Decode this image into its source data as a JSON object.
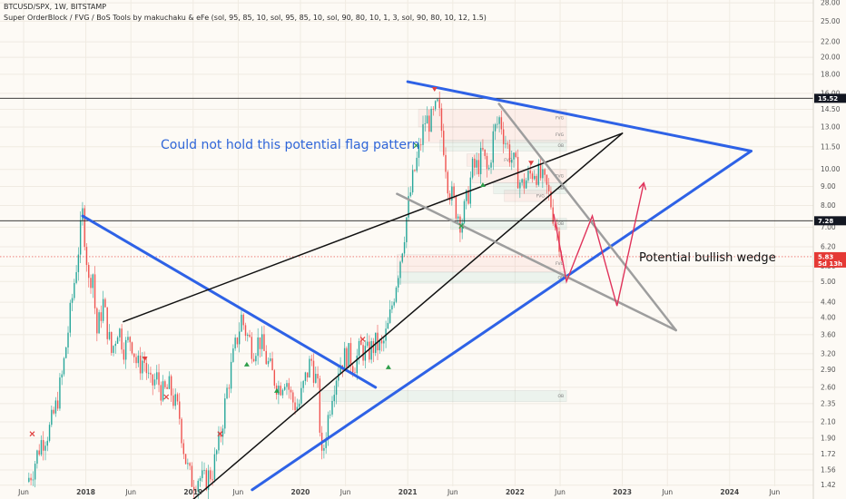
{
  "header": {
    "symbol_line": "BTCUSD/SPX, 1W, BITSTAMP",
    "indicator_line": "Super OrderBlock / FVG / BoS Tools by makuchaku & eFe (sol, 95, 85, 10, sol, 95, 85, 10, sol, 90, 80, 10, 1, 3, sol, 90, 80, 10, 12, 1.5)"
  },
  "annotations": {
    "flag_text": "Could not hold this potential flag pattern",
    "wedge_text": "Potential bullish wedge"
  },
  "price_labels": [
    {
      "value": "15.52",
      "color": "#131722"
    },
    {
      "value": "7.28",
      "color": "#131722"
    },
    {
      "value": "5.83",
      "color": "#e53935",
      "sub": "5d 13h"
    }
  ],
  "zone_labels": [
    "FVG",
    "OB"
  ],
  "colors": {
    "up": "#26a69a",
    "down": "#ef5350",
    "trend_blue": "#2e62e6",
    "trend_black": "#111111",
    "wedge_gray": "#9e9e9e",
    "projection": "#e0335b"
  },
  "chart_data": {
    "type": "candlestick",
    "y_scale": "log",
    "ylim": [
      1.41,
      28.5
    ],
    "y_ticks": [
      1.42,
      1.56,
      1.72,
      1.9,
      2.1,
      2.35,
      2.6,
      2.9,
      3.2,
      3.6,
      4.0,
      4.4,
      5.0,
      5.5,
      6.2,
      7.0,
      8.0,
      9.0,
      10.0,
      11.5,
      13.0,
      14.5,
      16.0,
      18.0,
      20.0,
      22.0,
      25.0,
      28.0
    ],
    "x_ticks": [
      {
        "label": "Jun",
        "t": 2017.42,
        "bold": false
      },
      {
        "label": "2018",
        "t": 2018.0,
        "bold": true
      },
      {
        "label": "Jun",
        "t": 2018.42,
        "bold": false
      },
      {
        "label": "2019",
        "t": 2019.0,
        "bold": true
      },
      {
        "label": "Jun",
        "t": 2019.42,
        "bold": false
      },
      {
        "label": "2020",
        "t": 2020.0,
        "bold": true
      },
      {
        "label": "Jun",
        "t": 2020.42,
        "bold": false
      },
      {
        "label": "2021",
        "t": 2021.0,
        "bold": true
      },
      {
        "label": "Jun",
        "t": 2021.42,
        "bold": false
      },
      {
        "label": "2022",
        "t": 2022.0,
        "bold": true
      },
      {
        "label": "Jun",
        "t": 2022.42,
        "bold": false
      },
      {
        "label": "2023",
        "t": 2023.0,
        "bold": true
      },
      {
        "label": "Jun",
        "t": 2023.42,
        "bold": false
      },
      {
        "label": "2024",
        "t": 2024.0,
        "bold": true
      },
      {
        "label": "Jun",
        "t": 2024.42,
        "bold": false
      }
    ],
    "x_range": [
      2017.2,
      2024.78
    ],
    "price_path": [
      [
        2017.45,
        1.45
      ],
      [
        2017.5,
        1.55
      ],
      [
        2017.58,
        1.85
      ],
      [
        2017.66,
        2.0
      ],
      [
        2017.72,
        2.3
      ],
      [
        2017.78,
        2.8
      ],
      [
        2017.84,
        3.8
      ],
      [
        2017.9,
        5.2
      ],
      [
        2017.95,
        6.8
      ],
      [
        2017.97,
        7.6
      ],
      [
        2018.0,
        6.2
      ],
      [
        2018.03,
        4.8
      ],
      [
        2018.06,
        5.6
      ],
      [
        2018.1,
        3.6
      ],
      [
        2018.16,
        4.4
      ],
      [
        2018.24,
        3.2
      ],
      [
        2018.3,
        3.8
      ],
      [
        2018.36,
        3.3
      ],
      [
        2018.42,
        3.55
      ],
      [
        2018.48,
        2.95
      ],
      [
        2018.54,
        3.1
      ],
      [
        2018.6,
        2.6
      ],
      [
        2018.66,
        2.75
      ],
      [
        2018.72,
        2.5
      ],
      [
        2018.78,
        2.6
      ],
      [
        2018.82,
        2.4
      ],
      [
        2018.87,
        2.2
      ],
      [
        2018.92,
        1.72
      ],
      [
        2018.96,
        1.52
      ],
      [
        2019.0,
        1.45
      ],
      [
        2019.05,
        1.5
      ],
      [
        2019.1,
        1.45
      ],
      [
        2019.18,
        1.55
      ],
      [
        2019.25,
        1.9
      ],
      [
        2019.32,
        2.6
      ],
      [
        2019.38,
        3.2
      ],
      [
        2019.45,
        4.0
      ],
      [
        2019.5,
        3.6
      ],
      [
        2019.56,
        3.3
      ],
      [
        2019.62,
        3.5
      ],
      [
        2019.68,
        3.1
      ],
      [
        2019.74,
        2.8
      ],
      [
        2019.8,
        2.6
      ],
      [
        2019.86,
        2.8
      ],
      [
        2019.92,
        2.4
      ],
      [
        2019.98,
        2.3
      ],
      [
        2020.04,
        2.7
      ],
      [
        2020.1,
        3.1
      ],
      [
        2020.16,
        2.6
      ],
      [
        2020.2,
        1.65
      ],
      [
        2020.24,
        2.0
      ],
      [
        2020.3,
        2.6
      ],
      [
        2020.36,
        3.0
      ],
      [
        2020.44,
        3.2
      ],
      [
        2020.5,
        3.0
      ],
      [
        2020.56,
        3.3
      ],
      [
        2020.62,
        3.2
      ],
      [
        2020.7,
        3.4
      ],
      [
        2020.76,
        3.3
      ],
      [
        2020.82,
        3.8
      ],
      [
        2020.88,
        4.8
      ],
      [
        2020.94,
        6.0
      ],
      [
        2021.0,
        7.8
      ],
      [
        2021.05,
        9.5
      ],
      [
        2021.1,
        11.0
      ],
      [
        2021.16,
        13.5
      ],
      [
        2021.22,
        13.5
      ],
      [
        2021.28,
        14.8
      ],
      [
        2021.33,
        12.0
      ],
      [
        2021.38,
        9.0
      ],
      [
        2021.44,
        8.0
      ],
      [
        2021.5,
        7.2
      ],
      [
        2021.56,
        8.5
      ],
      [
        2021.6,
        10.0
      ],
      [
        2021.65,
        10.2
      ],
      [
        2021.7,
        11.0
      ],
      [
        2021.75,
        9.6
      ],
      [
        2021.8,
        12.5
      ],
      [
        2021.86,
        13.8
      ],
      [
        2021.9,
        12.2
      ],
      [
        2021.95,
        11.0
      ],
      [
        2022.0,
        10.2
      ],
      [
        2022.06,
        9.0
      ],
      [
        2022.12,
        9.5
      ],
      [
        2022.18,
        10.0
      ],
      [
        2022.24,
        9.5
      ],
      [
        2022.3,
        8.8
      ],
      [
        2022.34,
        8.0
      ],
      [
        2022.38,
        7.0
      ],
      [
        2022.42,
        6.4
      ],
      [
        2022.44,
        5.83
      ]
    ],
    "projection_path": [
      [
        2022.36,
        7.6
      ],
      [
        2022.48,
        5.0
      ],
      [
        2022.72,
        7.5
      ],
      [
        2022.95,
        4.3
      ],
      [
        2023.2,
        9.2
      ]
    ],
    "trendlines": [
      {
        "color": "blue",
        "width": 3,
        "points": [
          [
            2017.97,
            7.5
          ],
          [
            2020.7,
            2.6
          ]
        ]
      },
      {
        "color": "blue",
        "width": 3,
        "points": [
          [
            2019.55,
            1.38
          ],
          [
            2024.2,
            11.2
          ]
        ]
      },
      {
        "color": "blue",
        "width": 3,
        "points": [
          [
            2021.0,
            17.2
          ],
          [
            2024.2,
            11.2
          ]
        ]
      },
      {
        "color": "black",
        "width": 1.5,
        "points": [
          [
            2018.35,
            3.9
          ],
          [
            2023.0,
            12.5
          ]
        ]
      },
      {
        "color": "black",
        "width": 1.5,
        "points": [
          [
            2019.0,
            1.3
          ],
          [
            2023.0,
            12.5
          ]
        ]
      },
      {
        "color": "gray",
        "width": 2.5,
        "points": [
          [
            2021.85,
            15.0
          ],
          [
            2023.5,
            3.7
          ]
        ]
      },
      {
        "color": "gray",
        "width": 2.5,
        "points": [
          [
            2020.9,
            8.6
          ],
          [
            2023.5,
            3.7
          ]
        ]
      }
    ],
    "horizontal_lines": [
      15.52,
      7.28
    ],
    "current_price_line": 5.83
  }
}
